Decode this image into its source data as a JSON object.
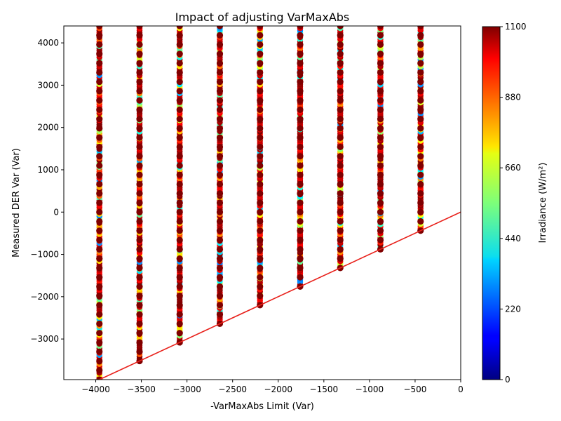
{
  "chart_data": {
    "type": "scatter",
    "title": "Impact of adjusting VarMaxAbs",
    "xlabel": "-VarMaxAbs Limit (Var)",
    "ylabel": "Measured DER Var (Var)",
    "colorbar_label": "Irradiance (W/m²)",
    "xlim": [
      -4350,
      0
    ],
    "ylim": [
      -3960,
      4400
    ],
    "x_ticks": [
      -4000,
      -3500,
      -3000,
      -2500,
      -2000,
      -1500,
      -1000,
      -500,
      0
    ],
    "x_tick_labels": [
      "−4000",
      "−3500",
      "−3000",
      "−2500",
      "−2000",
      "−1500",
      "−1000",
      "−500",
      "0"
    ],
    "y_ticks": [
      -3000,
      -2000,
      -1000,
      0,
      1000,
      2000,
      3000,
      4000
    ],
    "y_tick_labels": [
      "−3000",
      "−2000",
      "−1000",
      "0",
      "1000",
      "2000",
      "3000",
      "4000"
    ],
    "colorbar_range": [
      0,
      1100
    ],
    "colorbar_ticks": [
      0,
      220,
      440,
      660,
      880,
      1100
    ],
    "colorbar_tick_labels": [
      "0",
      "220",
      "440",
      "660",
      "880",
      "1100"
    ],
    "colormap": "jet",
    "limit_columns_x": [
      -3960,
      -3520,
      -3080,
      -2640,
      -2200,
      -1760,
      -1320,
      -880,
      -440
    ],
    "y_max": 4400,
    "scatter_bands": [
      {
        "x": -3960,
        "y_min": -3960,
        "y_max": 4400
      },
      {
        "x": -3520,
        "y_min": -3520,
        "y_max": 4400
      },
      {
        "x": -3080,
        "y_min": -3080,
        "y_max": 4400
      },
      {
        "x": -2640,
        "y_min": -2640,
        "y_max": 4400
      },
      {
        "x": -2200,
        "y_min": -2200,
        "y_max": 4400
      },
      {
        "x": -1760,
        "y_min": -1760,
        "y_max": 4400
      },
      {
        "x": -1320,
        "y_min": -1320,
        "y_max": 4400
      },
      {
        "x": -880,
        "y_min": -880,
        "y_max": 4400
      },
      {
        "x": -440,
        "y_min": -440,
        "y_max": 4400
      }
    ],
    "series": [
      {
        "type": "line",
        "x": [
          -3960,
          0
        ],
        "y": [
          -3960,
          0
        ],
        "color": "#e8201a"
      }
    ],
    "grid": false,
    "legend": "none"
  }
}
